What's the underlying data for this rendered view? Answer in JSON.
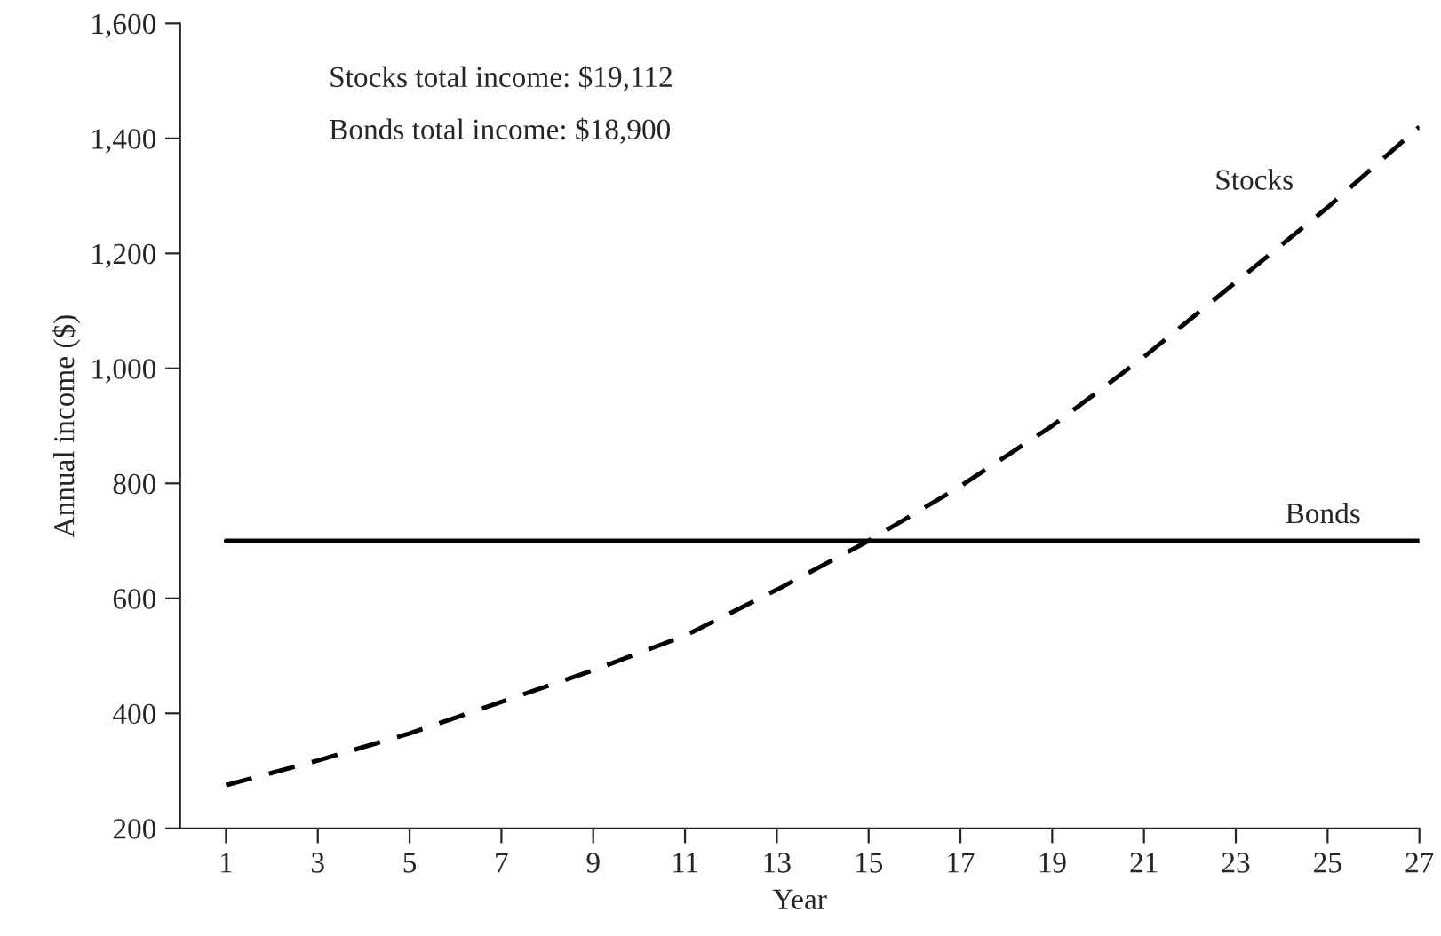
{
  "chart_data": {
    "type": "line",
    "xlabel": "Year",
    "ylabel": "Annual income ($)",
    "x": [
      1,
      3,
      5,
      7,
      9,
      11,
      13,
      15,
      17,
      19,
      21,
      23,
      25,
      27
    ],
    "series": [
      {
        "name": "Stocks",
        "color": "#000000",
        "line_style": "dashed",
        "values": [
          275,
          318,
          365,
          420,
          475,
          535,
          615,
          700,
          795,
          900,
          1020,
          1150,
          1280,
          1420
        ]
      },
      {
        "name": "Bonds",
        "color": "#000000",
        "line_style": "solid",
        "values": [
          700,
          700,
          700,
          700,
          700,
          700,
          700,
          700,
          700,
          700,
          700,
          700,
          700,
          700
        ]
      }
    ],
    "xlim": [
      0,
      27
    ],
    "xticks": [
      1,
      3,
      5,
      7,
      9,
      11,
      13,
      15,
      17,
      19,
      21,
      23,
      25,
      27
    ],
    "ylim": [
      200,
      1600
    ],
    "yticks": [
      {
        "value": 200,
        "label": "200"
      },
      {
        "value": 400,
        "label": "400"
      },
      {
        "value": 600,
        "label": "600"
      },
      {
        "value": 800,
        "label": "800"
      },
      {
        "value": 1000,
        "label": "1,000"
      },
      {
        "value": 1200,
        "label": "1,200"
      },
      {
        "value": 1400,
        "label": "1,400"
      },
      {
        "value": 1600,
        "label": "1,600"
      }
    ],
    "grid": false,
    "legend": false,
    "annotations": [
      "Stocks total income: $19,112",
      "Bonds total income: $18,900"
    ]
  }
}
